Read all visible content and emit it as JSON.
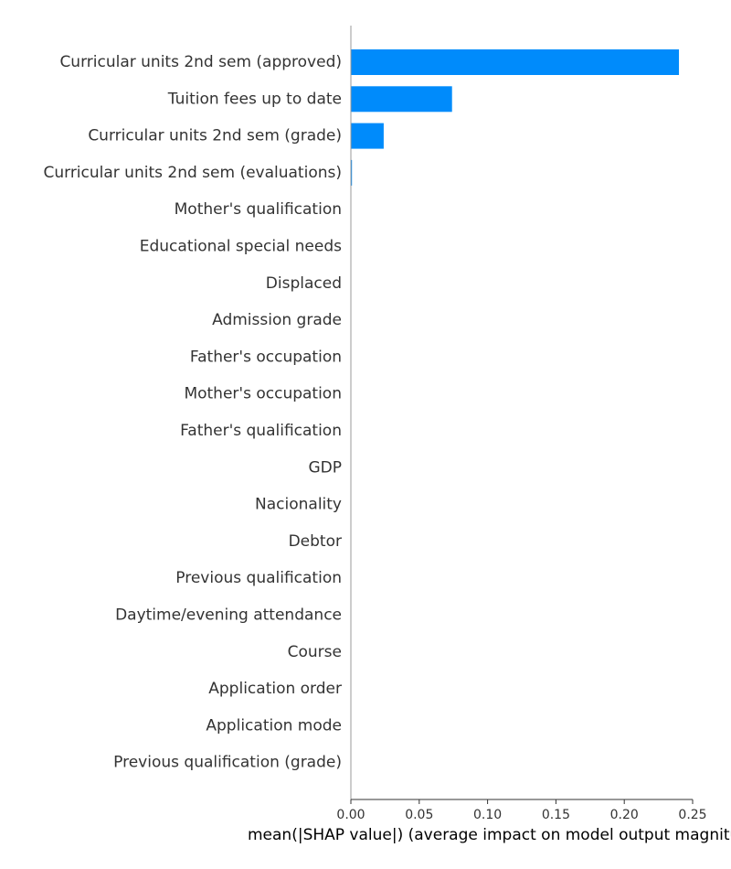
{
  "chart_data": {
    "type": "bar",
    "orientation": "horizontal",
    "categories": [
      "Curricular units 2nd sem (approved)",
      "Tuition fees up to date",
      "Curricular units 2nd sem (grade)",
      "Curricular units 2nd sem (evaluations)",
      "Mother's qualification",
      "Educational special needs",
      "Displaced",
      "Admission grade",
      "Father's occupation",
      "Mother's occupation",
      "Father's qualification",
      "GDP",
      "Nacionality",
      "Debtor",
      "Previous qualification",
      "Daytime/evening attendance",
      "Course",
      "Application order",
      "Application mode",
      "Previous qualification (grade)"
    ],
    "values": [
      0.24,
      0.074,
      0.024,
      0.0008,
      0,
      0,
      0,
      0,
      0,
      0,
      0,
      0,
      0,
      0,
      0,
      0,
      0,
      0,
      0,
      0
    ],
    "xlabel": "mean(|SHAP value|) (average impact on model output magnitude)",
    "xlim": [
      0,
      0.25
    ],
    "xticks": [
      0.0,
      0.05,
      0.1,
      0.15,
      0.2,
      0.25
    ],
    "xtick_labels": [
      "0.00",
      "0.05",
      "0.10",
      "0.15",
      "0.20",
      "0.25"
    ],
    "bar_color": "#008bfb",
    "grid": false,
    "legend": "none"
  }
}
